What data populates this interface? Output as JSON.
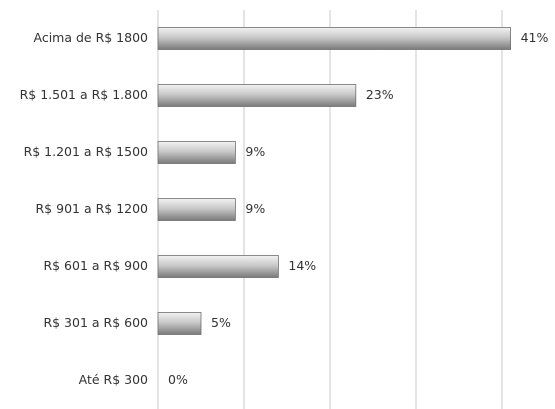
{
  "chart_data": {
    "type": "barh",
    "categories": [
      "Acima de R$ 1800",
      "R$ 1.501 a R$ 1.800",
      "R$ 1.201 a R$ 1500",
      "R$ 901 a R$ 1200",
      "R$ 601 a R$ 900",
      "R$ 301 a R$ 600",
      "Até R$ 300"
    ],
    "values": [
      41,
      23,
      9,
      9,
      14,
      5,
      0
    ],
    "value_labels": [
      "41%",
      "23%",
      "9%",
      "9%",
      "14%",
      "5%",
      "0%"
    ],
    "color": "#9a9a9a",
    "xlim": [
      0,
      45
    ],
    "xticks": [
      0,
      10,
      20,
      30,
      40
    ],
    "grid": true
  }
}
